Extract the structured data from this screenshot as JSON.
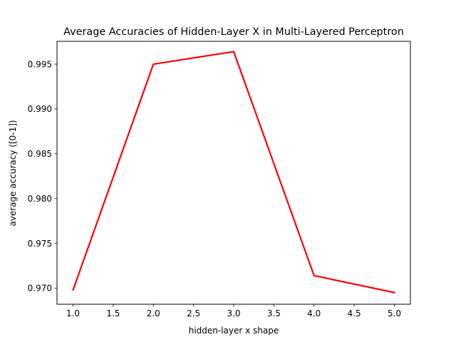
{
  "chart_data": {
    "type": "line",
    "title": "Average Accuracies of Hidden-Layer X in Multi-Layered Perceptron",
    "xlabel": "hidden-layer x shape",
    "ylabel": "average accuracy ([0-1])",
    "x": [
      1.0,
      2.0,
      3.0,
      4.0,
      5.0
    ],
    "series": [
      {
        "values": [
          0.9698,
          0.995,
          0.9964,
          0.9714,
          0.9695
        ],
        "color": "#ff0000"
      }
    ],
    "xlim": [
      0.8,
      5.2
    ],
    "ylim": [
      0.9682,
      0.99755
    ],
    "xticks": [
      1.0,
      1.5,
      2.0,
      2.5,
      3.0,
      3.5,
      4.0,
      4.5,
      5.0
    ],
    "xtick_labels": [
      "1.0",
      "1.5",
      "2.0",
      "2.5",
      "3.0",
      "3.5",
      "4.0",
      "4.5",
      "5.0"
    ],
    "yticks": [
      0.97,
      0.975,
      0.98,
      0.985,
      0.99,
      0.995
    ],
    "ytick_labels": [
      "0.970",
      "0.975",
      "0.980",
      "0.985",
      "0.990",
      "0.995"
    ],
    "grid": false,
    "legend": false
  }
}
